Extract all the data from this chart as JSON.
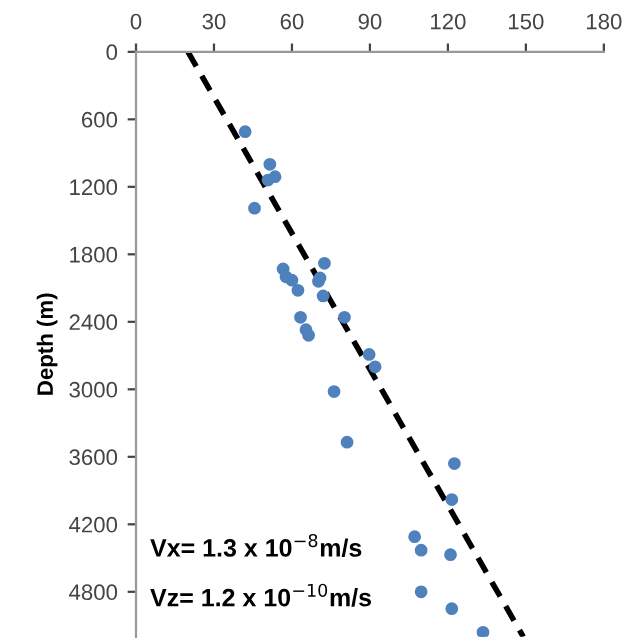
{
  "chart_data": {
    "type": "scatter",
    "ylabel": "Depth (m)",
    "xlim": [
      0,
      180
    ],
    "xticks": [
      0,
      30,
      60,
      90,
      120,
      150,
      180
    ],
    "ylim": [
      5200,
      0
    ],
    "yticks": [
      0,
      600,
      1200,
      1800,
      2400,
      3000,
      3600,
      4200,
      4800
    ],
    "grid": false,
    "series": [
      {
        "color": "#4f81bd",
        "marker": "circle",
        "x": [
          42,
          51.5,
          50.8,
          53.5,
          45.6,
          72.5,
          56.6,
          57.7,
          60,
          70.8,
          70.2,
          62.3,
          72,
          63.3,
          80.2,
          65.4,
          66.4,
          89.7,
          92,
          76.2,
          81.2,
          122.5,
          121.5,
          107.2,
          109.7,
          121,
          109.7,
          121.5,
          133.5
        ],
        "values": [
          710,
          1000,
          1140,
          1110,
          1390,
          1880,
          1930,
          2000,
          2030,
          2010,
          2040,
          2120,
          2170,
          2360,
          2360,
          2470,
          2520,
          2690,
          2800,
          3020,
          3470,
          3660,
          3980,
          4310,
          4430,
          4470,
          4800,
          4950,
          5160
        ]
      },
      {
        "type": "line",
        "color": "#000000",
        "line_style": "dashed",
        "marker": "none",
        "x": [
          20,
          149
        ],
        "values": [
          0,
          5200
        ]
      }
    ],
    "annotations": [
      {
        "text": "Vx= 1.3 x 10$^{−8}$m/s"
      },
      {
        "text": "Vz= 1.2 x 10$^{−10}$m/s"
      }
    ]
  }
}
